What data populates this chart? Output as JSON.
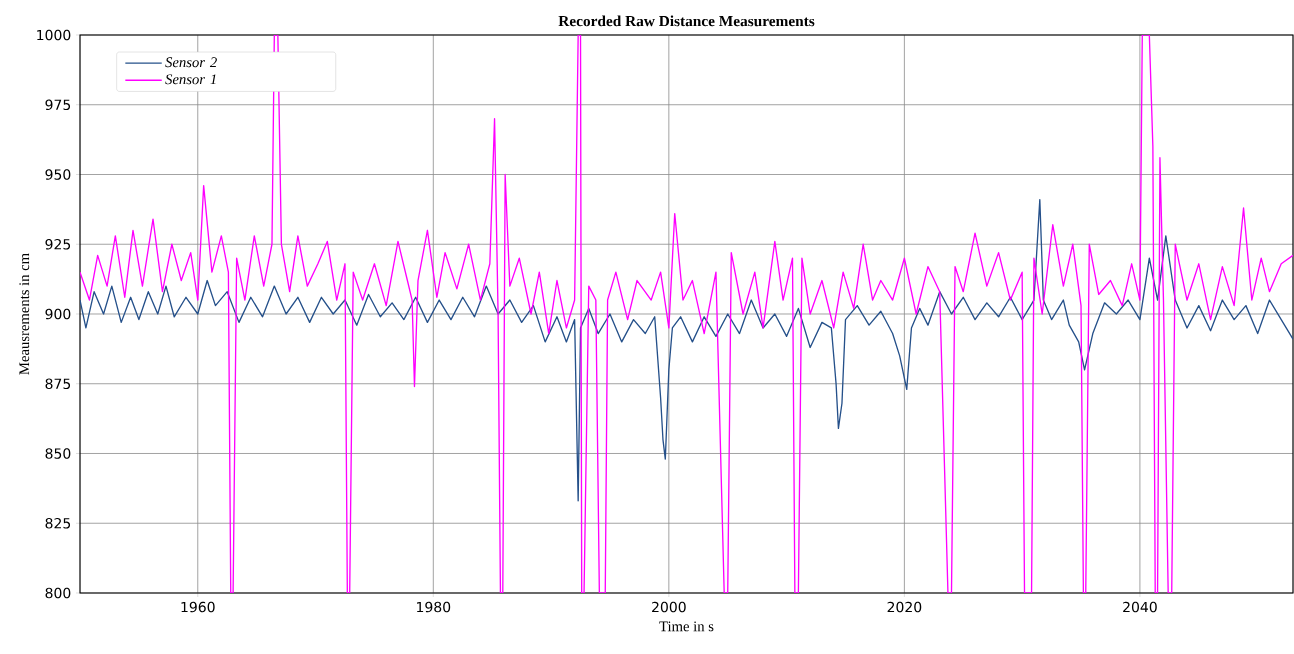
{
  "chart_data": {
    "type": "line",
    "title": "Recorded Raw Distance Measurements",
    "xlabel": "Time in s",
    "ylabel": "Meausrements in cm",
    "xlim": [
      1950,
      2053
    ],
    "ylim": [
      800,
      1000
    ],
    "xticks": [
      1960,
      1980,
      2000,
      2020,
      2040
    ],
    "yticks": [
      800,
      825,
      850,
      875,
      900,
      925,
      950,
      975,
      1000
    ],
    "grid": true,
    "legend": "top left",
    "series": [
      {
        "name": "Sensor 2",
        "color": "#25508a",
        "x": [
          1950.0,
          1950.5,
          1951.2,
          1952.0,
          1952.7,
          1953.5,
          1954.3,
          1955.0,
          1955.8,
          1956.6,
          1957.3,
          1958.0,
          1959.0,
          1960.0,
          1960.8,
          1961.5,
          1962.5,
          1963.5,
          1964.5,
          1965.5,
          1966.5,
          1967.5,
          1968.5,
          1969.5,
          1970.5,
          1971.5,
          1972.5,
          1973.5,
          1974.5,
          1975.5,
          1976.5,
          1977.5,
          1978.5,
          1979.5,
          1980.5,
          1981.5,
          1982.5,
          1983.5,
          1984.5,
          1985.5,
          1986.5,
          1987.5,
          1988.5,
          1989.5,
          1990.5,
          1991.3,
          1992.0,
          1992.3,
          1992.5,
          1993.2,
          1994.0,
          1995.0,
          1996.0,
          1997.0,
          1998.0,
          1998.8,
          1999.3,
          1999.5,
          1999.7,
          2000.0,
          2000.3,
          2001.0,
          2002.0,
          2003.0,
          2004.0,
          2005.0,
          2006.0,
          2007.0,
          2008.0,
          2009.0,
          2010.0,
          2011.0,
          2012.0,
          2013.0,
          2013.8,
          2014.2,
          2014.4,
          2014.7,
          2015.0,
          2016.0,
          2017.0,
          2018.0,
          2019.0,
          2019.6,
          2020.2,
          2020.6,
          2021.3,
          2022.0,
          2023.0,
          2024.0,
          2025.0,
          2026.0,
          2027.0,
          2028.0,
          2029.0,
          2030.0,
          2031.0,
          2031.5,
          2031.8,
          2032.5,
          2033.5,
          2034.0,
          2034.8,
          2035.3,
          2036.0,
          2037.0,
          2038.0,
          2039.0,
          2040.0,
          2040.8,
          2041.5,
          2042.2,
          2043.0,
          2044.0,
          2045.0,
          2046.0,
          2047.0,
          2048.0,
          2049.0,
          2050.0,
          2051.0,
          2052.0,
          2053.0
        ],
        "values": [
          905,
          895,
          908,
          900,
          910,
          897,
          906,
          898,
          908,
          900,
          910,
          899,
          906,
          900,
          912,
          903,
          908,
          897,
          906,
          899,
          910,
          900,
          906,
          897,
          906,
          900,
          905,
          896,
          907,
          899,
          904,
          898,
          906,
          897,
          905,
          898,
          906,
          899,
          910,
          900,
          905,
          897,
          903,
          890,
          899,
          890,
          898,
          833,
          895,
          902,
          893,
          900,
          890,
          898,
          893,
          899,
          870,
          855,
          848,
          880,
          895,
          899,
          890,
          899,
          892,
          900,
          893,
          905,
          895,
          900,
          892,
          902,
          888,
          897,
          895,
          875,
          859,
          868,
          898,
          903,
          896,
          901,
          893,
          885,
          873,
          895,
          902,
          896,
          908,
          900,
          906,
          898,
          904,
          899,
          906,
          898,
          905,
          941,
          905,
          898,
          905,
          896,
          890,
          880,
          893,
          904,
          900,
          905,
          898,
          920,
          905,
          928,
          905,
          895,
          903,
          894,
          905,
          898,
          903,
          893,
          905,
          898,
          891
        ]
      },
      {
        "name": "Sensor 1",
        "color": "#ff00ff",
        "x": [
          1950.0,
          1950.8,
          1951.5,
          1952.3,
          1953.0,
          1953.8,
          1954.5,
          1955.3,
          1956.2,
          1957.0,
          1957.8,
          1958.6,
          1959.4,
          1960.0,
          1960.5,
          1961.2,
          1962.0,
          1962.6,
          1962.8,
          1963.0,
          1963.3,
          1964.0,
          1964.8,
          1965.6,
          1966.3,
          1966.5,
          1966.8,
          1967.1,
          1967.8,
          1968.5,
          1969.3,
          1970.2,
          1971.0,
          1971.8,
          1972.5,
          1972.7,
          1972.9,
          1973.2,
          1974.0,
          1975.0,
          1976.0,
          1977.0,
          1977.8,
          1978.2,
          1978.4,
          1978.7,
          1979.5,
          1980.3,
          1981.0,
          1982.0,
          1983.0,
          1984.0,
          1984.8,
          1985.2,
          1985.5,
          1985.7,
          1985.9,
          1986.1,
          1986.5,
          1987.3,
          1988.3,
          1989.0,
          1989.8,
          1990.5,
          1991.3,
          1992.0,
          1992.3,
          1992.5,
          1992.6,
          1992.8,
          1993.2,
          1993.8,
          1994.1,
          1994.3,
          1994.6,
          1994.8,
          1995.5,
          1996.5,
          1997.3,
          1998.5,
          1999.3,
          2000.0,
          2000.5,
          2001.2,
          2002.0,
          2003.0,
          2004.0,
          2004.7,
          2005.0,
          2005.3,
          2006.3,
          2007.3,
          2008.0,
          2009.0,
          2009.7,
          2010.5,
          2010.7,
          2011.0,
          2011.3,
          2012.0,
          2013.0,
          2014.0,
          2014.8,
          2015.7,
          2016.5,
          2017.3,
          2018.0,
          2019.0,
          2020.0,
          2021.0,
          2022.0,
          2023.0,
          2023.7,
          2024.0,
          2024.3,
          2025.0,
          2026.0,
          2027.0,
          2028.0,
          2029.0,
          2030.0,
          2030.2,
          2030.5,
          2030.8,
          2031.0,
          2031.7,
          2032.6,
          2033.5,
          2034.3,
          2035.0,
          2035.2,
          2035.4,
          2035.7,
          2036.5,
          2037.5,
          2038.5,
          2039.3,
          2040.0,
          2040.2,
          2040.5,
          2040.8,
          2041.1,
          2041.3,
          2041.5,
          2041.7,
          2042.0,
          2042.4,
          2042.7,
          2043.0,
          2044.0,
          2045.0,
          2046.0,
          2047.0,
          2048.0,
          2048.8,
          2049.5,
          2050.3,
          2051.0,
          2052.0,
          2053.0
        ],
        "values": [
          915,
          905,
          921,
          910,
          928,
          906,
          930,
          910,
          934,
          908,
          925,
          912,
          922,
          905,
          946,
          915,
          928,
          915,
          800,
          800,
          920,
          905,
          928,
          910,
          925,
          1000,
          1000,
          925,
          908,
          928,
          910,
          918,
          926,
          905,
          918,
          800,
          800,
          915,
          905,
          918,
          903,
          926,
          912,
          905,
          874,
          912,
          930,
          906,
          922,
          909,
          925,
          905,
          918,
          970,
          900,
          800,
          800,
          950,
          910,
          920,
          900,
          915,
          893,
          912,
          895,
          905,
          1000,
          1000,
          800,
          800,
          910,
          905,
          800,
          800,
          800,
          905,
          915,
          898,
          912,
          905,
          915,
          895,
          936,
          905,
          912,
          893,
          915,
          800,
          800,
          922,
          900,
          915,
          895,
          926,
          905,
          920,
          800,
          800,
          920,
          900,
          912,
          895,
          915,
          902,
          925,
          905,
          912,
          905,
          920,
          900,
          917,
          908,
          800,
          800,
          917,
          908,
          929,
          910,
          922,
          905,
          915,
          800,
          800,
          800,
          920,
          900,
          932,
          910,
          925,
          903,
          800,
          800,
          925,
          907,
          912,
          903,
          918,
          905,
          1000,
          1000,
          1000,
          960,
          800,
          800,
          956,
          905,
          800,
          800,
          925,
          905,
          918,
          898,
          917,
          903,
          938,
          905,
          920,
          908,
          918,
          921
        ]
      }
    ]
  }
}
